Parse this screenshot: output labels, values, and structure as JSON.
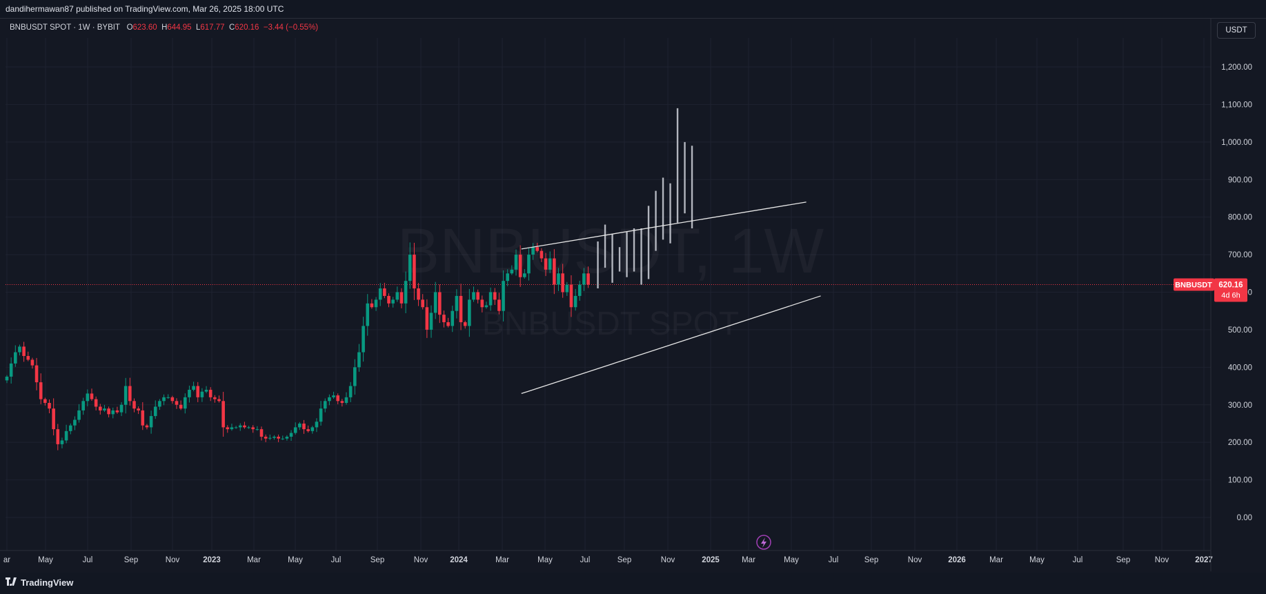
{
  "header": {
    "published": "dandihermawan87 published on TradingView.com, Mar 26, 2025 18:00 UTC"
  },
  "legend": {
    "symbol": "BNBUSDT SPOT · 1W · BYBIT",
    "o_label": "O",
    "o_value": "623.60",
    "h_label": "H",
    "h_value": "644.95",
    "l_label": "L",
    "l_value": "617.77",
    "c_label": "C",
    "c_value": "620.16",
    "change": "−3.44 (−0.55%)"
  },
  "currency_button": "USDT",
  "watermark": {
    "line1": "BNBUSDT, 1W",
    "line2": "BNBUSDT SPOT"
  },
  "price_tag": {
    "symbol": "BNBUSDT",
    "price": "620.16",
    "countdown": "4d 6h",
    "color": "#f23645"
  },
  "footer": {
    "brand": "TradingView"
  },
  "colors": {
    "up": "#089981",
    "down": "#f23645",
    "projection": "#b2b5be",
    "background": "#141823",
    "grid": "#1e2230"
  },
  "chart_data": {
    "type": "candlestick",
    "title": "BNBUSDT SPOT · 1W · BYBIT",
    "ylim": [
      -60,
      1300
    ],
    "y_ticks": [
      "0.00",
      "100.00",
      "200.00",
      "300.00",
      "400.00",
      "500.00",
      "600.00",
      "700.00",
      "800.00",
      "900.00",
      "1,000.00",
      "1,100.00",
      "1,200.00"
    ],
    "x_ticks": [
      "ar",
      "May",
      "Jul",
      "Sep",
      "Nov",
      "2023",
      "Mar",
      "May",
      "Jul",
      "Sep",
      "Nov",
      "2024",
      "Mar",
      "May",
      "Jul",
      "Sep",
      "Nov",
      "2025",
      "Mar",
      "May",
      "Jul",
      "Sep",
      "Nov",
      "2026",
      "Mar",
      "May",
      "Jul",
      "Sep",
      "Nov",
      "2027"
    ],
    "grid": true,
    "last_price": 620.16,
    "closes": [
      375,
      410,
      440,
      455,
      430,
      420,
      405,
      360,
      315,
      305,
      290,
      235,
      195,
      205,
      230,
      245,
      260,
      285,
      310,
      330,
      315,
      295,
      285,
      290,
      275,
      285,
      280,
      300,
      350,
      310,
      290,
      285,
      245,
      240,
      270,
      295,
      310,
      320,
      320,
      310,
      300,
      290,
      320,
      340,
      350,
      320,
      335,
      340,
      320,
      315,
      310,
      240,
      235,
      240,
      240,
      245,
      240,
      240,
      235,
      235,
      215,
      210,
      212,
      215,
      210,
      210,
      215,
      225,
      240,
      250,
      235,
      230,
      240,
      255,
      290,
      310,
      320,
      325,
      310,
      305,
      320,
      350,
      400,
      440,
      510,
      570,
      560,
      580,
      610,
      590,
      570,
      580,
      600,
      570,
      630,
      700,
      610,
      580,
      560,
      500,
      545,
      600,
      540,
      520,
      510,
      550,
      590,
      520,
      510,
      580,
      600,
      580,
      560,
      565,
      600,
      580,
      550,
      630,
      650,
      660,
      700,
      640,
      650,
      700,
      720,
      710,
      690,
      660,
      690,
      620,
      650,
      600,
      620,
      560,
      590,
      620,
      650,
      620.16
    ],
    "projection": [
      {
        "low": 610,
        "high": 735
      },
      {
        "low": 665,
        "high": 780
      },
      {
        "low": 625,
        "high": 755
      },
      {
        "low": 655,
        "high": 720
      },
      {
        "low": 640,
        "high": 760
      },
      {
        "low": 655,
        "high": 770
      },
      {
        "low": 620,
        "high": 770
      },
      {
        "low": 635,
        "high": 830
      },
      {
        "low": 710,
        "high": 870
      },
      {
        "low": 740,
        "high": 905
      },
      {
        "low": 730,
        "high": 890
      },
      {
        "low": 785,
        "high": 1090
      },
      {
        "low": 810,
        "high": 1000
      },
      {
        "low": 770,
        "high": 990
      }
    ],
    "annotations": [
      {
        "type": "trendline",
        "name": "channel-upper",
        "from": {
          "date": "2024-04-01",
          "price": 715
        },
        "to": {
          "date": "2025-05-20",
          "price": 840
        }
      },
      {
        "type": "trendline",
        "name": "channel-lower",
        "from": {
          "date": "2024-04-01",
          "price": 330
        },
        "to": {
          "date": "2025-06-10",
          "price": 590
        }
      }
    ]
  }
}
